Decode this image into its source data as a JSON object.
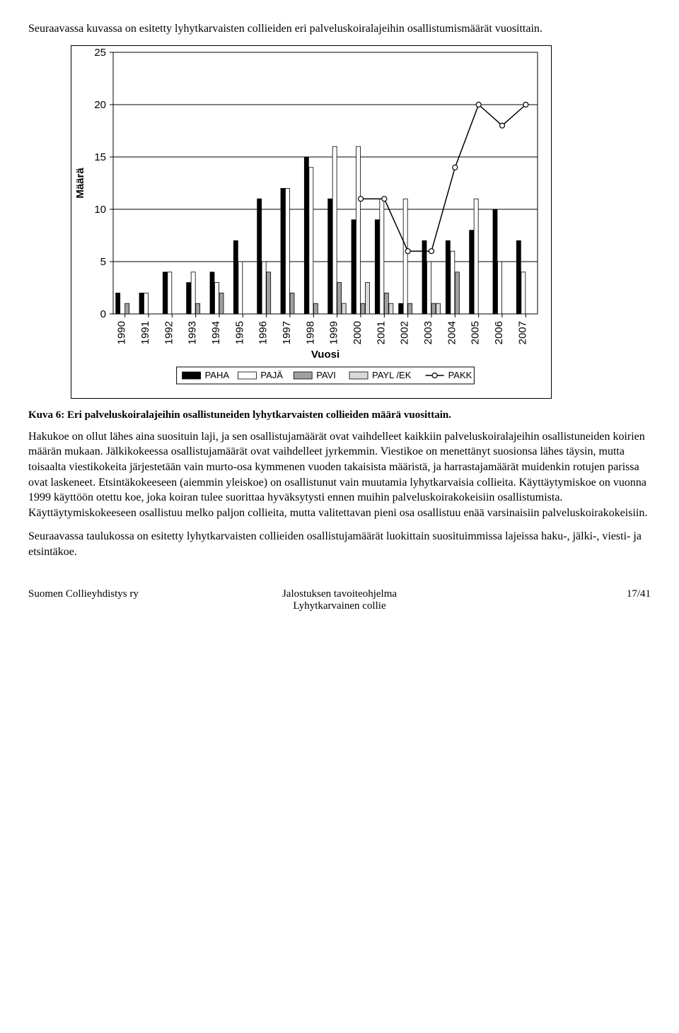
{
  "intro": "Seuraavassa kuvassa on esitetty lyhytkarvaisten collieiden eri palveluskoiralajeihin osallistumismäärät vuosittain.",
  "chart": {
    "type": "bar+line",
    "categories": [
      "1990",
      "1991",
      "1992",
      "1993",
      "1994",
      "1995",
      "1996",
      "1997",
      "1998",
      "1999",
      "2000",
      "2001",
      "2002",
      "2003",
      "2004",
      "2005",
      "2006",
      "2007"
    ],
    "series": [
      {
        "key": "PAHA",
        "label": "PAHA",
        "type": "bar",
        "color": "#000000",
        "values": [
          2,
          2,
          4,
          3,
          4,
          7,
          11,
          12,
          15,
          11,
          9,
          9,
          1,
          7,
          7,
          8,
          10,
          7
        ]
      },
      {
        "key": "PAJA",
        "label": "PAJÄ",
        "type": "bar",
        "color": "#ffffff",
        "values": [
          0,
          2,
          4,
          4,
          3,
          5,
          5,
          12,
          14,
          16,
          16,
          11,
          11,
          5,
          6,
          11,
          5,
          4
        ]
      },
      {
        "key": "PAVI",
        "label": "PAVI",
        "type": "bar",
        "color": "#a0a0a0",
        "values": [
          1,
          0,
          0,
          1,
          2,
          0,
          4,
          2,
          1,
          3,
          1,
          2,
          1,
          1,
          4,
          0,
          0,
          0
        ]
      },
      {
        "key": "PAYL",
        "label": "PAYL /EK",
        "type": "bar",
        "color": "#d9d9d9",
        "values": [
          0,
          0,
          0,
          0,
          0,
          0,
          0,
          0,
          0,
          1,
          3,
          1,
          0,
          1,
          0,
          0,
          0,
          0
        ]
      },
      {
        "key": "PAKK",
        "label": "PAKK",
        "type": "line",
        "color": "#000000",
        "values": [
          null,
          null,
          null,
          null,
          null,
          null,
          null,
          null,
          null,
          null,
          11,
          11,
          6,
          6,
          14,
          20,
          18,
          20
        ]
      }
    ],
    "ylim": [
      0,
      25
    ],
    "ytick_step": 5,
    "ylabel": "Määrä",
    "xlabel": "Vuosi",
    "plot_bg": "#ffffff",
    "grid_color": "#000000",
    "bar_group_width": 0.78,
    "axis_fontsize": 15,
    "tick_fontsize": 15,
    "legend_fontsize": 13,
    "legend_box_w": 26,
    "legend_box_h": 10
  },
  "caption": "Kuva 6: Eri palveluskoiralajeihin osallistuneiden lyhytkarvaisten collieiden määrä vuosittain.",
  "para1": "Hakukoe on ollut lähes aina suosituin laji, ja sen osallistujamäärät ovat vaihdelleet kaikkiin palveluskoiralajeihin osallistuneiden koirien määrän mukaan. Jälkikokeessa osallistujamäärät ovat vaihdelleet jyrkemmin. Viestikoe on menettänyt suosionsa lähes täysin, mutta toisaalta viestikokeita järjestetään vain murto-osa kymmenen vuoden takaisista määristä, ja harrastajamäärät muidenkin rotujen parissa ovat laskeneet. Etsintäkokeeseen (aiemmin yleiskoe) on osallistunut vain muutamia lyhytkarvaisia collieita. Käyttäytymiskoe on vuonna 1999 käyttöön otettu koe, joka koiran tulee suorittaa hyväksytysti ennen muihin palveluskoirakokeisiin osallistumista. Käyttäytymiskokeeseen osallistuu melko paljon collieita, mutta valitettavan pieni osa osallistuu enää varsinaisiin palveluskoirakokeisiin.",
  "para2": "Seuraavassa taulukossa on esitetty lyhytkarvaisten collieiden osallistujamäärät luokittain suosituimmissa lajeissa haku-, jälki-, viesti- ja etsintäkoe.",
  "footer": {
    "left": "Suomen Collieyhdistys ry",
    "center1": "Jalostuksen tavoiteohjelma",
    "center2": "Lyhytkarvainen collie",
    "right": "17/41"
  }
}
